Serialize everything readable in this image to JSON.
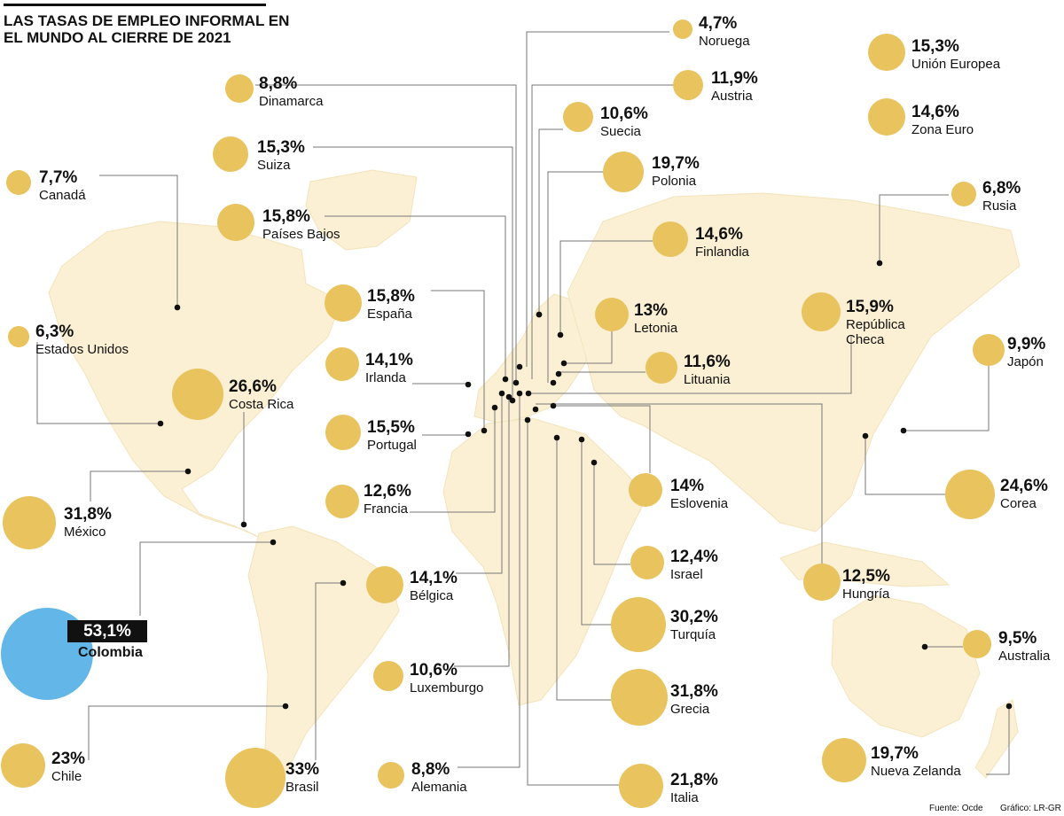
{
  "title": "LAS TASAS DE EMPLEO INFORMAL EN EL MUNDO AL CIERRE DE 2021",
  "colors": {
    "bubble": "#e8c35e",
    "highlight": "#62b6e8",
    "land": "#fbf0d3"
  },
  "countries": [
    {
      "name": "Noruega",
      "value": "4,7%"
    },
    {
      "name": "Austria",
      "value": "11,9%"
    },
    {
      "name": "Suecia",
      "value": "10,6%"
    },
    {
      "name": "Polonia",
      "value": "19,7%"
    },
    {
      "name": "Finlandia",
      "value": "14,6%"
    },
    {
      "name": "Letonia",
      "value": "13%"
    },
    {
      "name": "Lituania",
      "value": "11,6%"
    },
    {
      "name": "Eslovenia",
      "value": "14%"
    },
    {
      "name": "Israel",
      "value": "12,4%"
    },
    {
      "name": "Turquía",
      "value": "30,2%"
    },
    {
      "name": "Grecia",
      "value": "31,8%"
    },
    {
      "name": "Italia",
      "value": "21,8%"
    },
    {
      "name": "Dinamarca",
      "value": "8,8%"
    },
    {
      "name": "Suiza",
      "value": "15,3%"
    },
    {
      "name": "Países Bajos",
      "value": "15,8%"
    },
    {
      "name": "España",
      "value": "15,8%"
    },
    {
      "name": "Irlanda",
      "value": "14,1%"
    },
    {
      "name": "Portugal",
      "value": "15,5%"
    },
    {
      "name": "Francia",
      "value": "12,6%"
    },
    {
      "name": "Bélgica",
      "value": "14,1%"
    },
    {
      "name": "Luxemburgo",
      "value": "10,6%"
    },
    {
      "name": "Alemania",
      "value": "8,8%"
    },
    {
      "name": "Canadá",
      "value": "7,7%"
    },
    {
      "name": "Estados Unidos",
      "value": "6,3%"
    },
    {
      "name": "Costa Rica",
      "value": "26,6%"
    },
    {
      "name": "México",
      "value": "31,8%"
    },
    {
      "name": "Chile",
      "value": "23%"
    },
    {
      "name": "Brasil",
      "value": "33%"
    },
    {
      "name": "Unión Europea",
      "value": "15,3%"
    },
    {
      "name": "Zona Euro",
      "value": "14,6%"
    },
    {
      "name": "Rusia",
      "value": "6,8%"
    },
    {
      "name": "República Checa",
      "value": "15,9%"
    },
    {
      "name": "Japón",
      "value": "9,9%"
    },
    {
      "name": "Corea",
      "value": "24,6%"
    },
    {
      "name": "Hungría",
      "value": "12,5%"
    },
    {
      "name": "Australia",
      "value": "9,5%"
    },
    {
      "name": "Nueva Zelanda",
      "value": "19,7%"
    }
  ],
  "highlight": {
    "name": "Colombia",
    "value": "53,1%"
  },
  "footer": {
    "source": "Fuente: Ocde",
    "graphic": "Gráfico: LR-GR"
  }
}
